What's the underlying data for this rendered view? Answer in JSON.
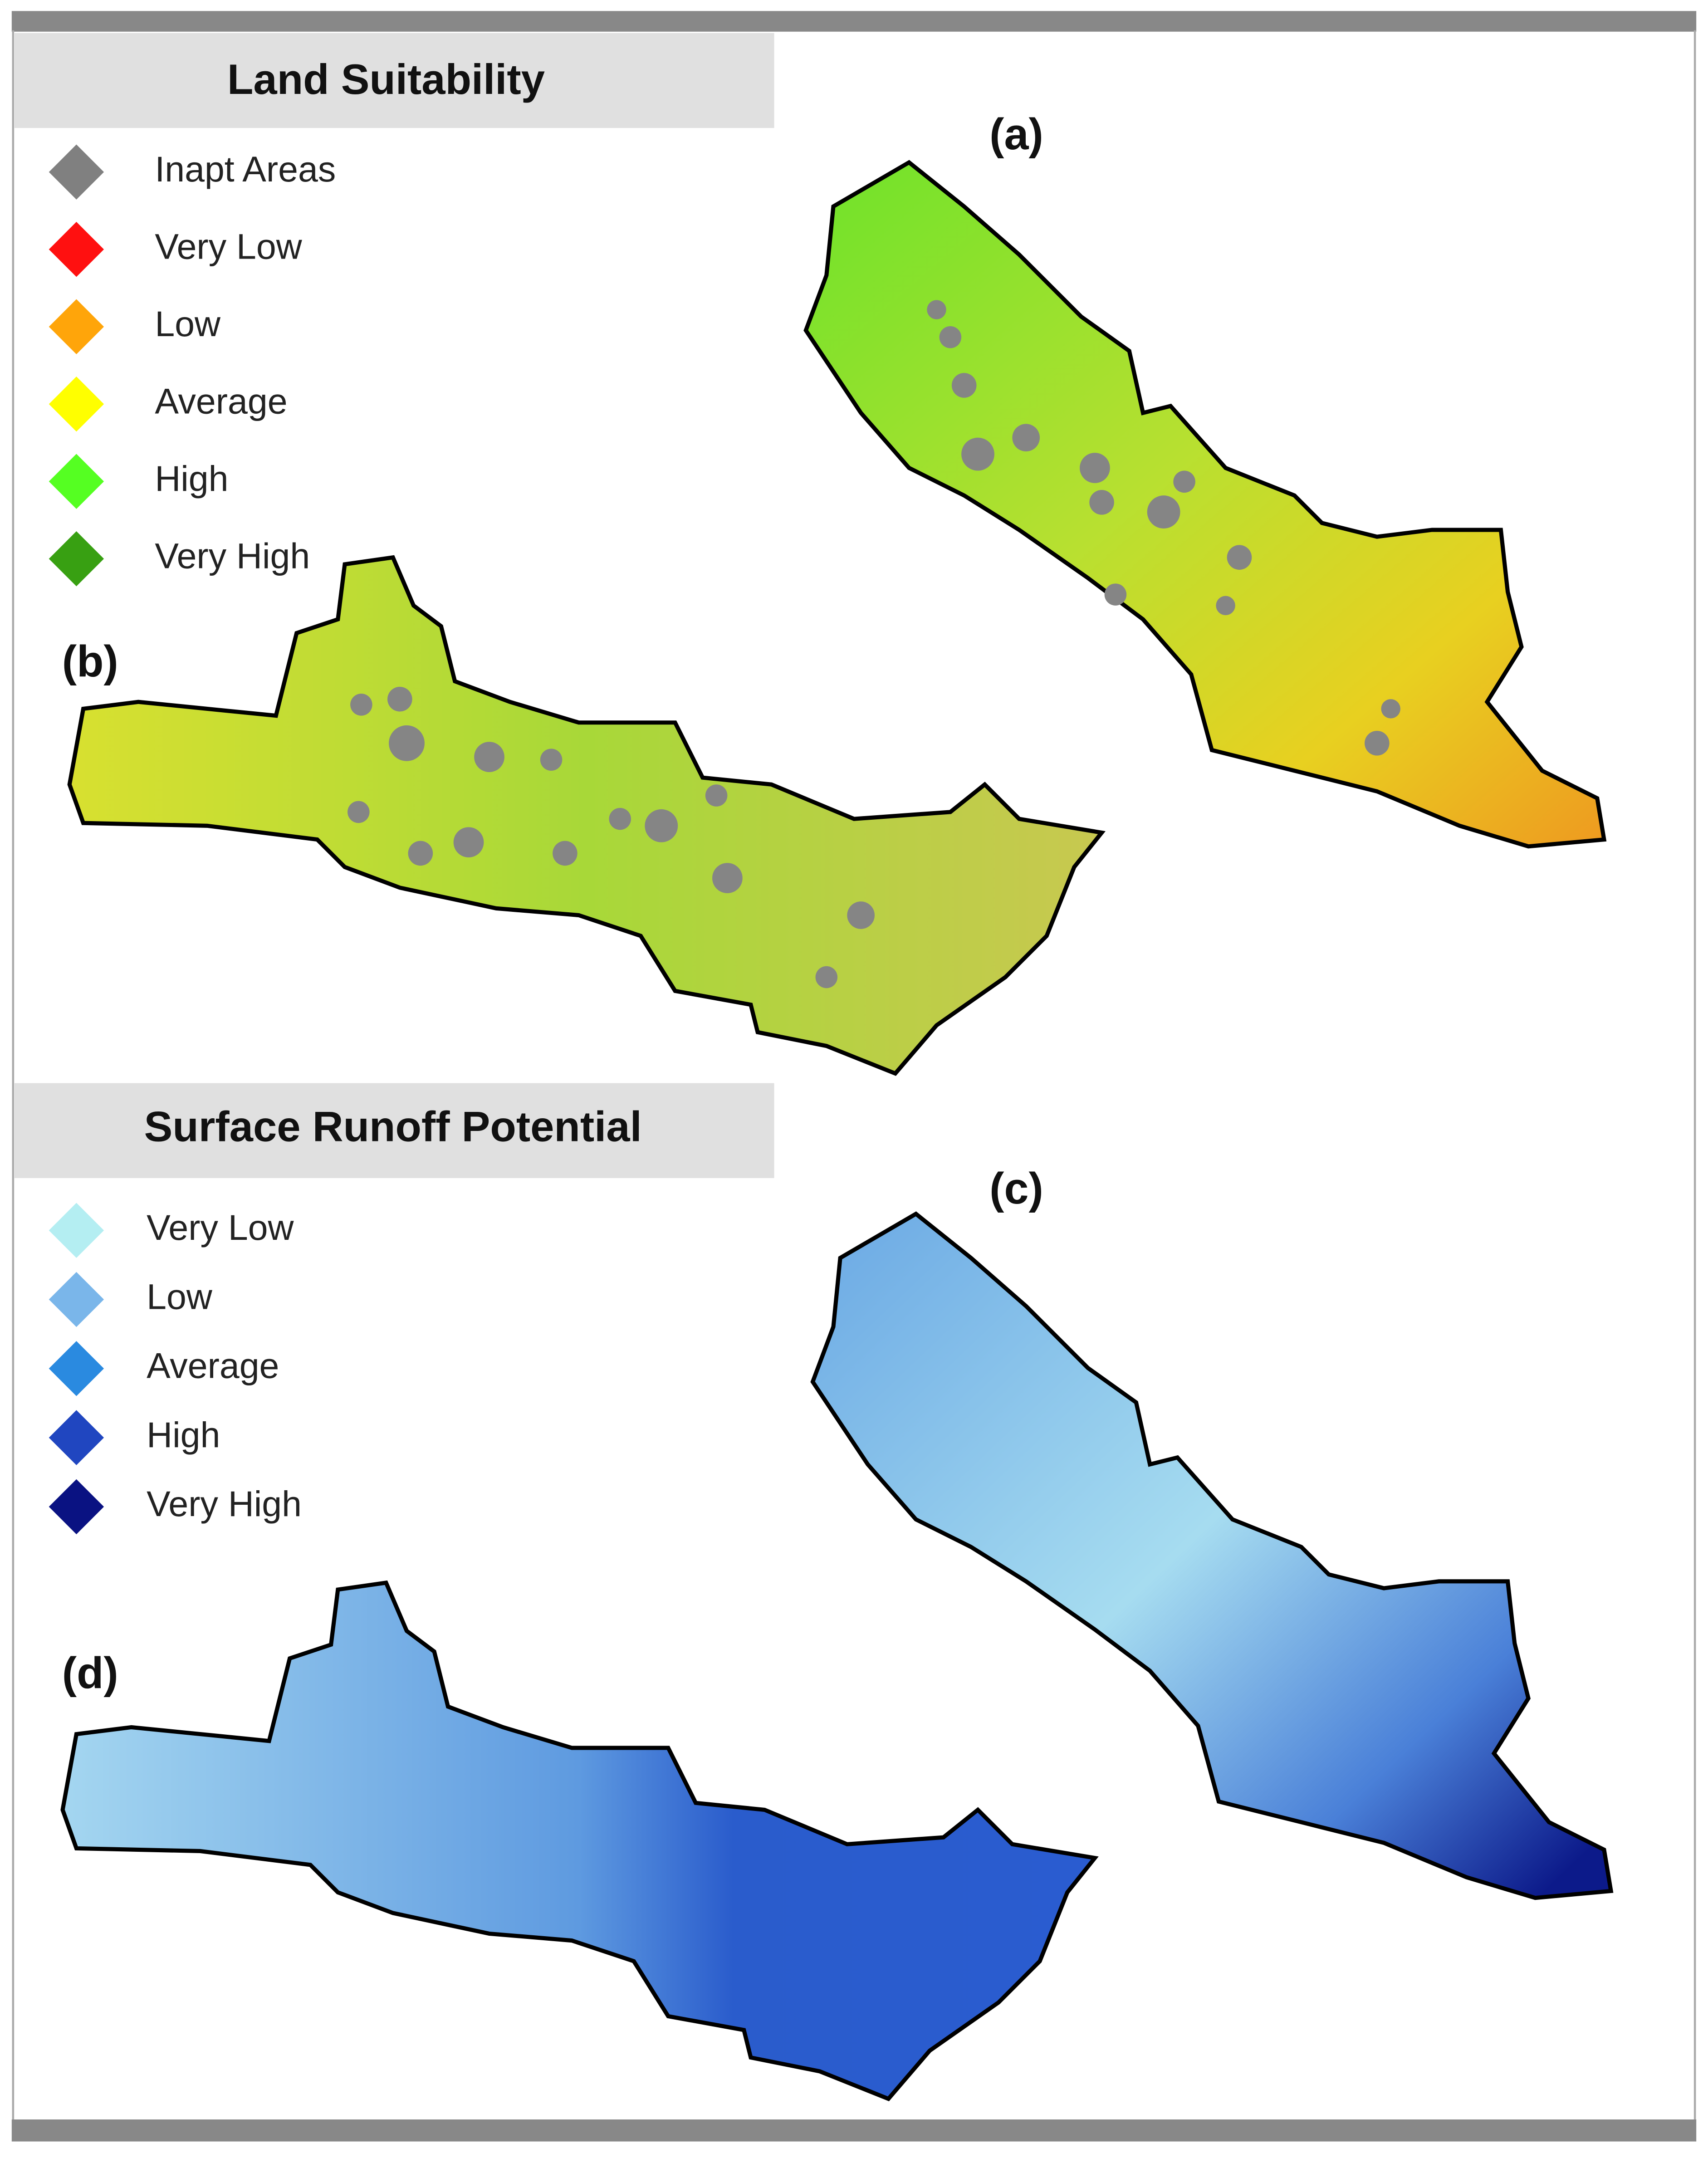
{
  "legends": [
    {
      "title": "Land Suitability",
      "items": [
        {
          "label": "Inapt Areas",
          "color": "#808080"
        },
        {
          "label": "Very Low",
          "color": "#ff1010"
        },
        {
          "label": "Low",
          "color": "#ffa50a"
        },
        {
          "label": "Average",
          "color": "#ffff00"
        },
        {
          "label": "High",
          "color": "#55ff22"
        },
        {
          "label": "Very High",
          "color": "#38a012"
        }
      ]
    },
    {
      "title": "Surface Runoff Potential",
      "items": [
        {
          "label": "Very Low",
          "color": "#b4eef2"
        },
        {
          "label": "Low",
          "color": "#7ab6ea"
        },
        {
          "label": "Average",
          "color": "#2a8ae0"
        },
        {
          "label": "High",
          "color": "#2046c0"
        },
        {
          "label": "Very High",
          "color": "#0a1282"
        }
      ]
    }
  ],
  "panels": [
    "(a)",
    "(b)",
    "(c)",
    "(d)"
  ]
}
